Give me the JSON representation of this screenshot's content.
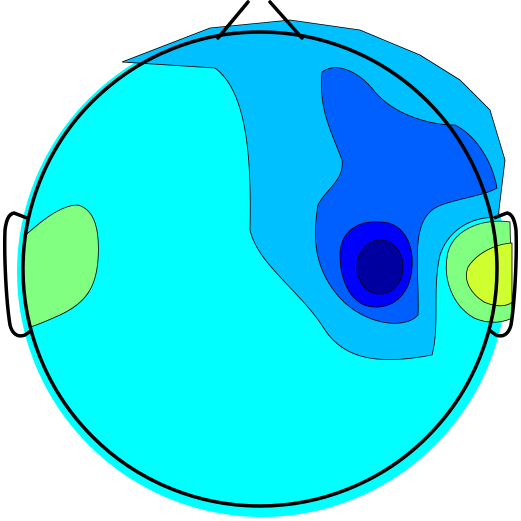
{
  "figure": {
    "type": "scalp-topography",
    "colors": {
      "background": "#ffffff",
      "head_outline": "#000000",
      "contour_line": "#000000",
      "level_cyan": "#00ffff",
      "level_sky_blue": "#00c0ff",
      "level_medium_blue": "#0060ff",
      "level_blue": "#0000ff",
      "level_dark_blue": "#0000a0",
      "level_light_green": "#80ff80",
      "level_yellow_green": "#d0ff30"
    },
    "regions": [
      {
        "name": "background-field",
        "color_key": "level_cyan"
      },
      {
        "name": "right-frontal-sky-blue",
        "color_key": "level_sky_blue"
      },
      {
        "name": "right-frontal-medium-blue",
        "color_key": "level_medium_blue"
      },
      {
        "name": "central-blue",
        "color_key": "level_blue"
      },
      {
        "name": "central-dark-blue-core",
        "color_key": "level_dark_blue"
      },
      {
        "name": "left-temporal-green",
        "color_key": "level_light_green"
      },
      {
        "name": "right-temporal-green",
        "color_key": "level_light_green"
      },
      {
        "name": "right-temporal-yellow",
        "color_key": "level_yellow_green"
      }
    ]
  }
}
